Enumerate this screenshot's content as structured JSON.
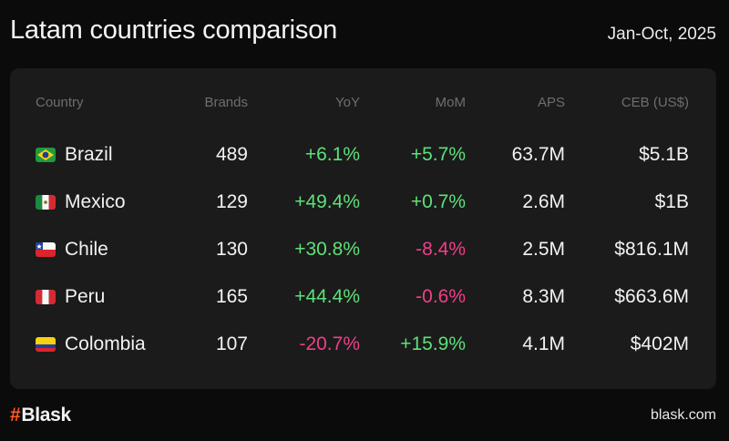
{
  "header": {
    "title": "Latam countries comparison",
    "period": "Jan-Oct, 2025"
  },
  "chart_data": {
    "type": "table",
    "columns": [
      "Country",
      "Brands",
      "YoY",
      "MoM",
      "APS",
      "CEB (US$)"
    ],
    "rows": [
      {
        "country": "Brazil",
        "flag": "brazil-flag",
        "brands": "489",
        "yoy": "+6.1%",
        "mom": "+5.7%",
        "aps": "63.7M",
        "ceb": "$5.1B",
        "yoy_sign": "pos",
        "mom_sign": "pos"
      },
      {
        "country": "Mexico",
        "flag": "mexico-flag",
        "brands": "129",
        "yoy": "+49.4%",
        "mom": "+0.7%",
        "aps": "2.6M",
        "ceb": "$1B",
        "yoy_sign": "pos",
        "mom_sign": "pos"
      },
      {
        "country": "Chile",
        "flag": "chile-flag",
        "brands": "130",
        "yoy": "+30.8%",
        "mom": "-8.4%",
        "aps": "2.5M",
        "ceb": "$816.1M",
        "yoy_sign": "pos",
        "mom_sign": "neg"
      },
      {
        "country": "Peru",
        "flag": "peru-flag",
        "brands": "165",
        "yoy": "+44.4%",
        "mom": "-0.6%",
        "aps": "8.3M",
        "ceb": "$663.6M",
        "yoy_sign": "pos",
        "mom_sign": "neg"
      },
      {
        "country": "Colombia",
        "flag": "colombia-flag",
        "brands": "107",
        "yoy": "-20.7%",
        "mom": "+15.9%",
        "aps": "4.1M",
        "ceb": "$402M",
        "yoy_sign": "neg",
        "mom_sign": "pos"
      }
    ]
  },
  "colors": {
    "positive": "#5ee07a",
    "negative": "#ef3f88",
    "brand_accent": "#ff5a1f"
  },
  "footer": {
    "logo_hash": "#",
    "logo_text": "Blask",
    "site": "blask.com"
  }
}
